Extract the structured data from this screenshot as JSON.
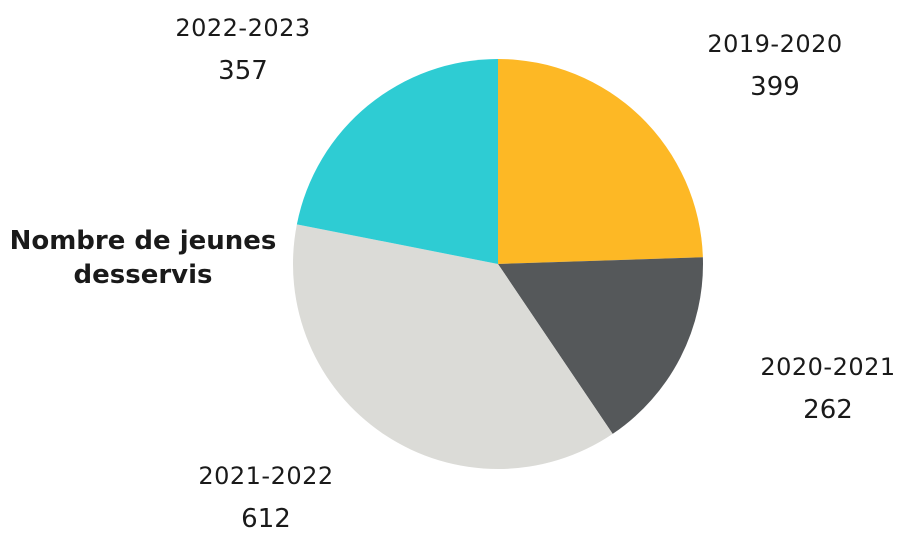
{
  "chart_data": {
    "type": "pie",
    "title": "Nombre de jeunes desservis",
    "slices": [
      {
        "label": "2019-2020",
        "value": 399,
        "color": "#FDB825"
      },
      {
        "label": "2020-2021",
        "value": 262,
        "color": "#55585A"
      },
      {
        "label": "2021-2022",
        "value": 612,
        "color": "#DBDBD7"
      },
      {
        "label": "2022-2023",
        "value": 357,
        "color": "#2ECCD3"
      }
    ]
  }
}
